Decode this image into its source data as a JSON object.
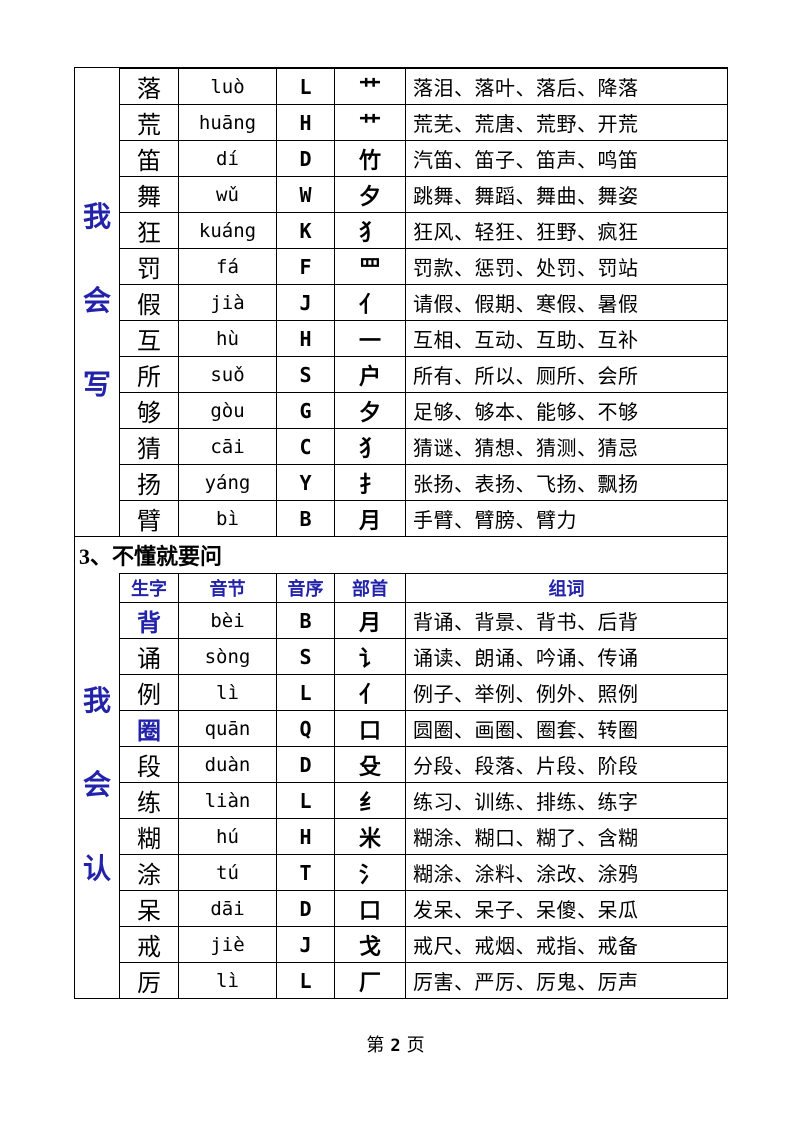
{
  "colors": {
    "accent_blue": "#2222aa",
    "border": "#000000",
    "background": "#ffffff"
  },
  "section1": {
    "side_label": [
      "我",
      "会",
      "写"
    ],
    "rows": [
      {
        "char": "落",
        "pinyin": "luò",
        "initial": "L",
        "radical": "艹",
        "words": "落泪、落叶、落后、降落",
        "highlight": false
      },
      {
        "char": "荒",
        "pinyin": "huāng",
        "initial": "H",
        "radical": "艹",
        "words": "荒芜、荒唐、荒野、开荒",
        "highlight": false
      },
      {
        "char": "笛",
        "pinyin": "dí",
        "initial": "D",
        "radical": "竹",
        "words": "汽笛、笛子、笛声、鸣笛",
        "highlight": false
      },
      {
        "char": "舞",
        "pinyin": "wǔ",
        "initial": "W",
        "radical": "夕",
        "words": "跳舞、舞蹈、舞曲、舞姿",
        "highlight": false
      },
      {
        "char": "狂",
        "pinyin": "kuáng",
        "initial": "K",
        "radical": "犭",
        "words": "狂风、轻狂、狂野、疯狂",
        "highlight": false
      },
      {
        "char": "罚",
        "pinyin": "fá",
        "initial": "F",
        "radical": "罒",
        "words": "罚款、惩罚、处罚、罚站",
        "highlight": false
      },
      {
        "char": "假",
        "pinyin": "jià",
        "initial": "J",
        "radical": "亻",
        "words": "请假、假期、寒假、暑假",
        "highlight": false
      },
      {
        "char": "互",
        "pinyin": "hù",
        "initial": "H",
        "radical": "一",
        "words": "互相、互动、互助、互补",
        "highlight": false
      },
      {
        "char": "所",
        "pinyin": "suǒ",
        "initial": "S",
        "radical": "户",
        "words": "所有、所以、厕所、会所",
        "highlight": false
      },
      {
        "char": "够",
        "pinyin": "gòu",
        "initial": "G",
        "radical": "夕",
        "words": "足够、够本、能够、不够",
        "highlight": false
      },
      {
        "char": "猜",
        "pinyin": "cāi",
        "initial": "C",
        "radical": "犭",
        "words": "猜谜、猜想、猜测、猜忌",
        "highlight": false
      },
      {
        "char": "扬",
        "pinyin": "yáng",
        "initial": "Y",
        "radical": "扌",
        "words": "张扬、表扬、飞扬、飘扬",
        "highlight": false
      },
      {
        "char": "臂",
        "pinyin": "bì",
        "initial": "B",
        "radical": "月",
        "words": "手臂、臂膀、臂力",
        "highlight": false
      }
    ]
  },
  "section2": {
    "heading": "3、不懂就要问",
    "columns": {
      "char": "生字",
      "pinyin": "音节",
      "initial": "音序",
      "radical": "部首",
      "words": "组词"
    },
    "side_label": [
      "我",
      "会",
      "认"
    ],
    "rows": [
      {
        "char": "背",
        "pinyin": "bèi",
        "initial": "B",
        "radical": "月",
        "words": "背诵、背景、背书、后背",
        "highlight": true
      },
      {
        "char": "诵",
        "pinyin": "sòng",
        "initial": "S",
        "radical": "讠",
        "words": "诵读、朗诵、吟诵、传诵",
        "highlight": false
      },
      {
        "char": "例",
        "pinyin": "lì",
        "initial": "L",
        "radical": "亻",
        "words": "例子、举例、例外、照例",
        "highlight": false
      },
      {
        "char": "圈",
        "pinyin": "quān",
        "initial": "Q",
        "radical": "口",
        "words": "圆圈、画圈、圈套、转圈",
        "highlight": true
      },
      {
        "char": "段",
        "pinyin": "duàn",
        "initial": "D",
        "radical": "殳",
        "words": "分段、段落、片段、阶段",
        "highlight": false
      },
      {
        "char": "练",
        "pinyin": "liàn",
        "initial": "L",
        "radical": "纟",
        "words": "练习、训练、排练、练字",
        "highlight": false
      },
      {
        "char": "糊",
        "pinyin": "hú",
        "initial": "H",
        "radical": "米",
        "words": "糊涂、糊口、糊了、含糊",
        "highlight": false
      },
      {
        "char": "涂",
        "pinyin": "tú",
        "initial": "T",
        "radical": "氵",
        "words": "糊涂、涂料、涂改、涂鸦",
        "highlight": false
      },
      {
        "char": "呆",
        "pinyin": "dāi",
        "initial": "D",
        "radical": "口",
        "words": "发呆、呆子、呆傻、呆瓜",
        "highlight": false
      },
      {
        "char": "戒",
        "pinyin": "jiè",
        "initial": "J",
        "radical": "戈",
        "words": "戒尺、戒烟、戒指、戒备",
        "highlight": false
      },
      {
        "char": "厉",
        "pinyin": "lì",
        "initial": "L",
        "radical": "厂",
        "words": "厉害、严厉、厉鬼、厉声",
        "highlight": false
      }
    ]
  },
  "footer": {
    "prefix": "第",
    "page_number": "2",
    "suffix": "页"
  }
}
